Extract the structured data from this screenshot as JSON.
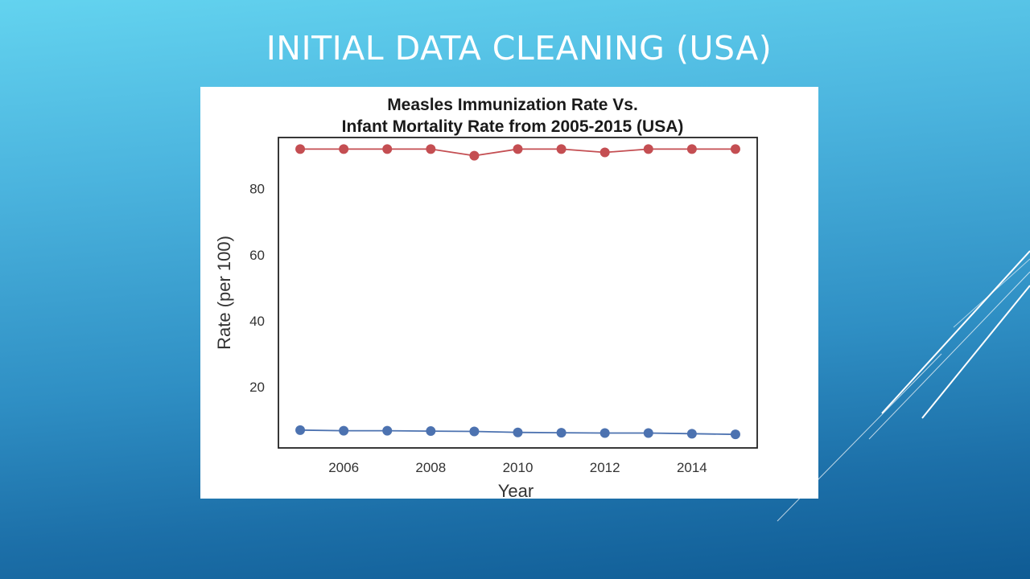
{
  "slide": {
    "title": "INITIAL DATA CLEANING (USA)"
  },
  "colors": {
    "background_top": "#63d3ef",
    "background_bottom": "#0f5b94",
    "title_text": "#ffffff",
    "series_red": "#c44e52",
    "series_blue": "#4c72b0"
  },
  "chart_data": {
    "type": "line",
    "title_line1": "Measles Immunization Rate Vs.",
    "title_line2": "Infant Mortality Rate from 2005-2015 (USA)",
    "xlabel": "Year",
    "ylabel": "Rate (per 100)",
    "x": [
      2005,
      2006,
      2007,
      2008,
      2009,
      2010,
      2011,
      2012,
      2013,
      2014,
      2015
    ],
    "xticks": [
      2006,
      2008,
      2010,
      2012,
      2014
    ],
    "yticks": [
      20,
      40,
      60,
      80
    ],
    "xlim": [
      2004.5,
      2015.5
    ],
    "ylim": [
      1.5,
      95.5
    ],
    "grid": false,
    "legend": "none",
    "series": [
      {
        "color": "#c44e52",
        "values": [
          92,
          92,
          92,
          92,
          90,
          92,
          92,
          91,
          92,
          92,
          92
        ]
      },
      {
        "color": "#4c72b0",
        "values": [
          6.9,
          6.7,
          6.7,
          6.6,
          6.5,
          6.2,
          6.1,
          6.0,
          6.0,
          5.8,
          5.6
        ]
      }
    ]
  }
}
